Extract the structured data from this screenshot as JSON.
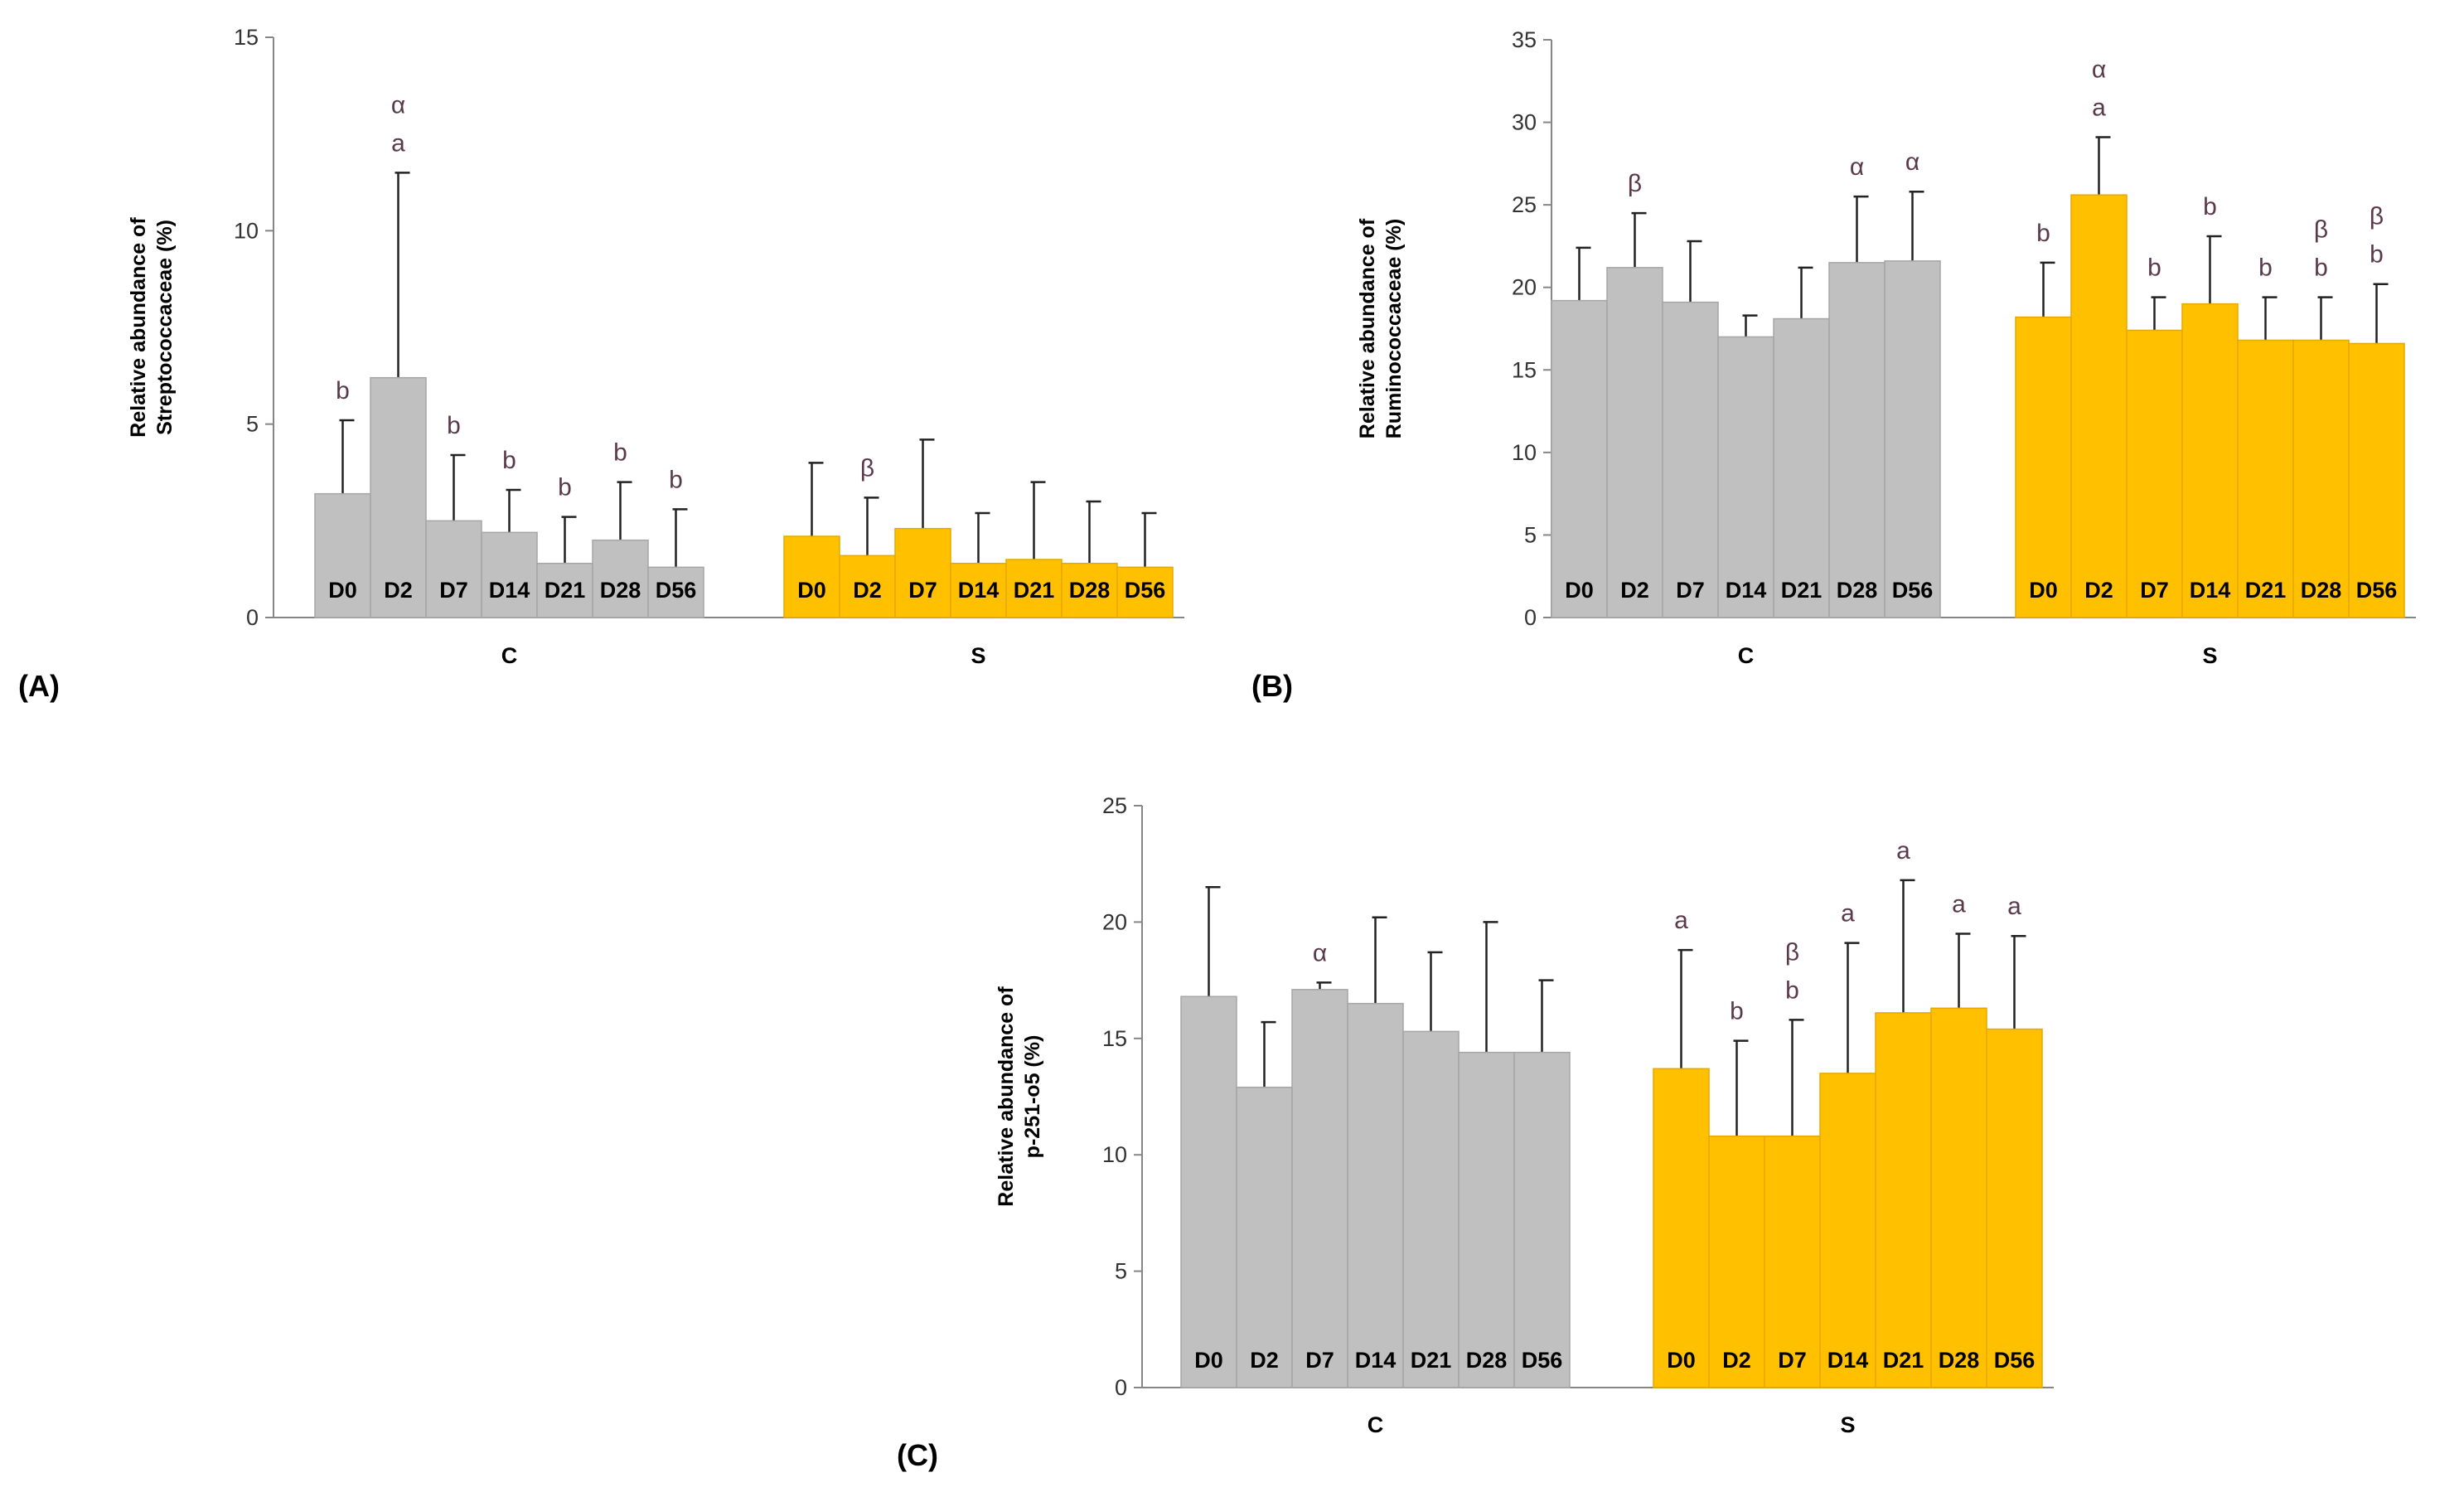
{
  "colors": {
    "control": "#c0c0c0",
    "control_edge": "#a6a6a6",
    "treatment": "#ffc000",
    "treatment_edge": "#e6a800",
    "axis": "#868686",
    "sig_letter": "#5a3a4a",
    "text": "#000000"
  },
  "chart_data": [
    {
      "type": "bar",
      "panel_label": "(A)",
      "ylabel_lines": [
        "Relative abundance of",
        "Streptococcaceae (%)"
      ],
      "ylim": [
        0,
        15
      ],
      "yticks": [
        0,
        5,
        10,
        15
      ],
      "groups": [
        {
          "name": "C",
          "categories": [
            "D0",
            "D2",
            "D7",
            "D14",
            "D21",
            "D28",
            "D56"
          ],
          "values": [
            3.2,
            6.2,
            2.5,
            2.2,
            1.4,
            2.0,
            1.3
          ],
          "errors": [
            1.9,
            5.3,
            1.7,
            1.1,
            1.2,
            1.5,
            1.5
          ],
          "annotations": [
            [
              "b"
            ],
            [
              "α",
              "a"
            ],
            [
              "b"
            ],
            [
              "b"
            ],
            [
              "b"
            ],
            [
              "b"
            ],
            [
              "b"
            ]
          ]
        },
        {
          "name": "S",
          "categories": [
            "D0",
            "D2",
            "D7",
            "D14",
            "D21",
            "D28",
            "D56"
          ],
          "values": [
            2.1,
            1.6,
            2.3,
            1.4,
            1.5,
            1.4,
            1.3
          ],
          "errors": [
            1.9,
            1.5,
            2.3,
            1.3,
            2.0,
            1.6,
            1.4
          ],
          "annotations": [
            [],
            [
              "β"
            ],
            [],
            [],
            [],
            [],
            []
          ]
        }
      ]
    },
    {
      "type": "bar",
      "panel_label": "(B)",
      "ylabel_lines": [
        "Relative abundance of",
        "Ruminococcaceae (%)"
      ],
      "ylim": [
        0,
        35
      ],
      "yticks": [
        0,
        5,
        10,
        15,
        20,
        25,
        30,
        35
      ],
      "groups": [
        {
          "name": "C",
          "categories": [
            "D0",
            "D2",
            "D7",
            "D14",
            "D21",
            "D28",
            "D56"
          ],
          "values": [
            19.2,
            21.2,
            19.1,
            17.0,
            18.1,
            21.5,
            21.6
          ],
          "errors": [
            3.2,
            3.3,
            3.7,
            1.3,
            3.1,
            4.0,
            4.2
          ],
          "annotations": [
            [],
            [
              "β"
            ],
            [],
            [],
            [],
            [
              "α"
            ],
            [
              "α"
            ]
          ]
        },
        {
          "name": "S",
          "categories": [
            "D0",
            "D2",
            "D7",
            "D14",
            "D21",
            "D28",
            "D56"
          ],
          "values": [
            18.2,
            25.6,
            17.4,
            19.0,
            16.8,
            16.8,
            16.6
          ],
          "errors": [
            3.3,
            3.5,
            2.0,
            4.1,
            2.6,
            2.6,
            3.6
          ],
          "annotations": [
            [
              "b"
            ],
            [
              "α",
              "a"
            ],
            [
              "b"
            ],
            [
              "b"
            ],
            [
              "b"
            ],
            [
              "β",
              "b"
            ],
            [
              "β",
              "b"
            ]
          ]
        }
      ]
    },
    {
      "type": "bar",
      "panel_label": "(C)",
      "ylabel_lines": [
        "Relative abundance of",
        "p-251-o5 (%)"
      ],
      "ylim": [
        0,
        25
      ],
      "yticks": [
        0,
        5,
        10,
        15,
        20,
        25
      ],
      "groups": [
        {
          "name": "C",
          "categories": [
            "D0",
            "D2",
            "D7",
            "D14",
            "D21",
            "D28",
            "D56"
          ],
          "values": [
            16.8,
            12.9,
            17.1,
            16.5,
            15.3,
            14.4,
            14.4
          ],
          "errors": [
            4.7,
            2.8,
            0.3,
            3.7,
            3.4,
            5.6,
            3.1
          ],
          "annotations": [
            [],
            [],
            [
              "α"
            ],
            [],
            [],
            [],
            []
          ]
        },
        {
          "name": "S",
          "categories": [
            "D0",
            "D2",
            "D7",
            "D14",
            "D21",
            "D28",
            "D56"
          ],
          "values": [
            13.7,
            10.8,
            10.8,
            13.5,
            16.1,
            16.3,
            15.4
          ],
          "errors": [
            5.1,
            4.1,
            5.0,
            5.6,
            5.7,
            3.2,
            4.0
          ],
          "annotations": [
            [
              "a"
            ],
            [
              "b"
            ],
            [
              "β",
              "b"
            ],
            [
              "a"
            ],
            [
              "a"
            ],
            [
              "a"
            ],
            [
              "a"
            ]
          ]
        }
      ]
    }
  ]
}
